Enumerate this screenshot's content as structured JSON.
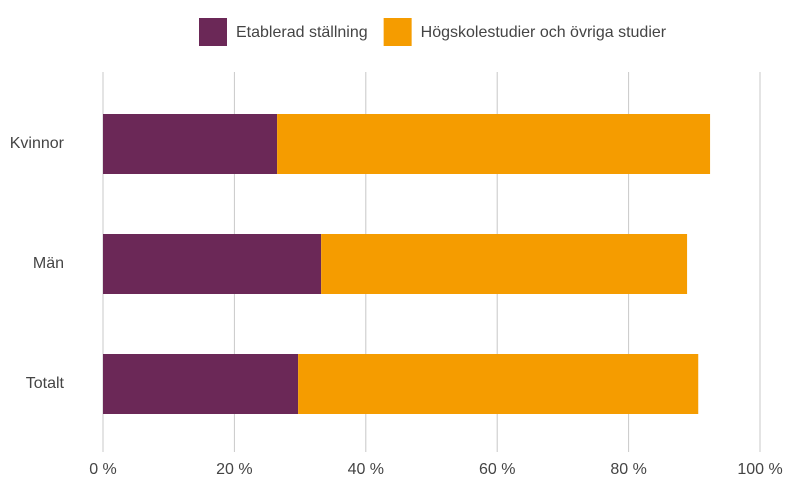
{
  "chart_data": {
    "type": "bar",
    "orientation": "horizontal",
    "stacked": true,
    "categories": [
      "Kvinnor",
      "Män",
      "Totalt"
    ],
    "series": [
      {
        "name": "Etablerad ställning",
        "color": "#6b2857",
        "values": [
          26.5,
          33.2,
          29.7
        ]
      },
      {
        "name": "Högskolestudier och övriga studier",
        "color": "#f59c00",
        "values": [
          65.9,
          55.7,
          60.9
        ]
      }
    ],
    "xlim": [
      0,
      100
    ],
    "xticks": [
      {
        "value": 0,
        "label": "0 %"
      },
      {
        "value": 20,
        "label": "20 %"
      },
      {
        "value": 40,
        "label": "40 %"
      },
      {
        "value": 60,
        "label": "60 %"
      },
      {
        "value": 80,
        "label": "80 %"
      },
      {
        "value": 100,
        "label": "100 %"
      }
    ],
    "grid": true,
    "legend": "top"
  }
}
